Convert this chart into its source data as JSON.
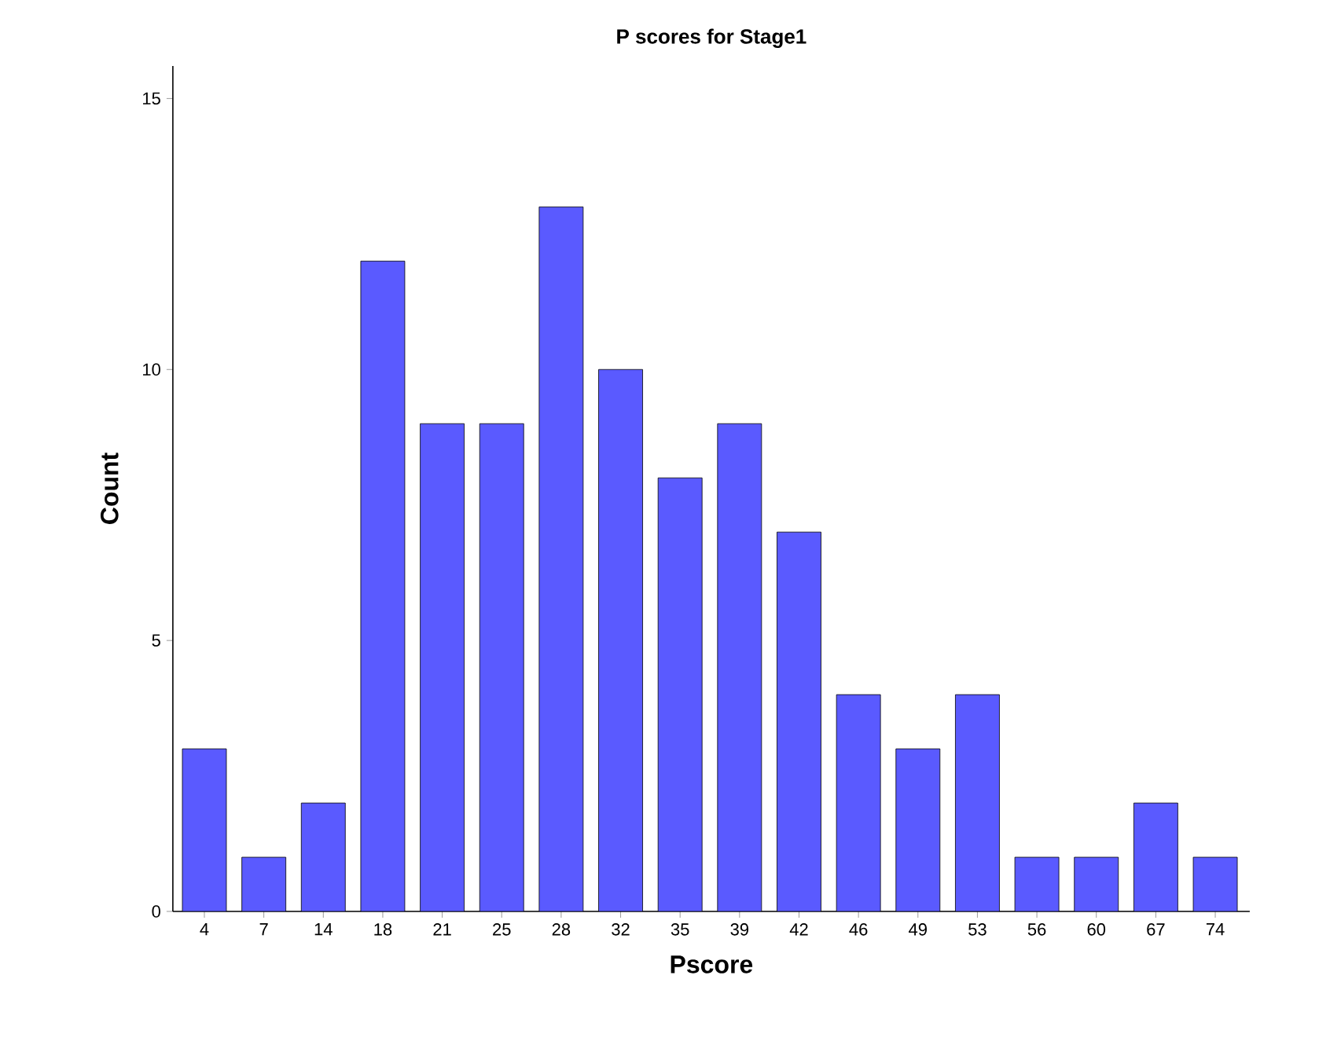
{
  "chart_data": {
    "type": "bar",
    "title": "P scores for Stage1",
    "xlabel": "Pscore",
    "ylabel": "Count",
    "categories": [
      "4",
      "7",
      "14",
      "18",
      "21",
      "25",
      "28",
      "32",
      "35",
      "39",
      "42",
      "46",
      "49",
      "53",
      "56",
      "60",
      "67",
      "74"
    ],
    "values": [
      3,
      1,
      2,
      12,
      9,
      9,
      13,
      10,
      8,
      9,
      7,
      4,
      3,
      4,
      1,
      1,
      2,
      1
    ],
    "color": "#5a5aff",
    "ylim": [
      0,
      15.6
    ],
    "yticks": [
      0,
      5,
      10,
      15
    ],
    "grid": false
  }
}
